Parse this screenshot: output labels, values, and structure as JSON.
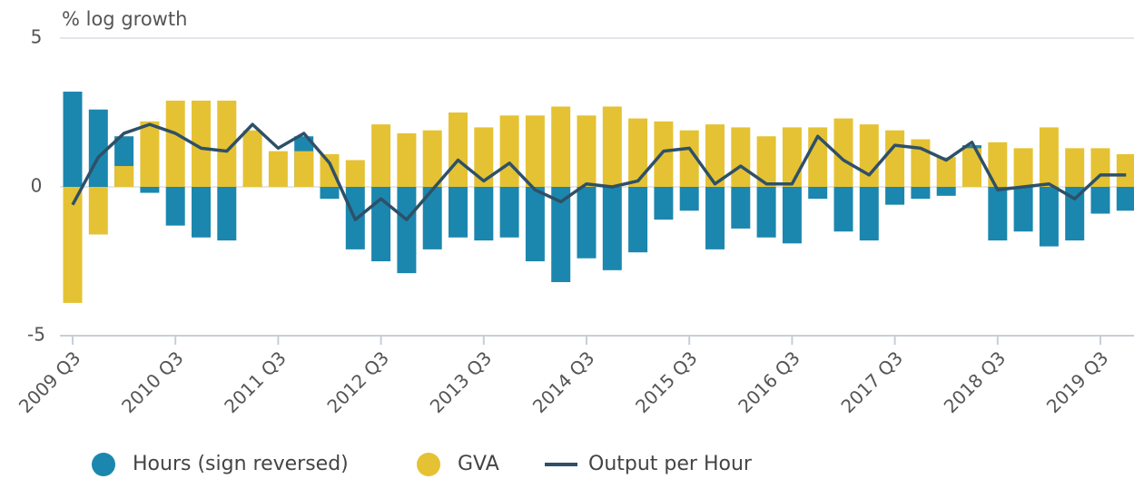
{
  "chart_data": {
    "type": "bar",
    "y_label": "% log growth",
    "categories": [
      "2009 Q3",
      null,
      null,
      null,
      "2010 Q3",
      null,
      null,
      null,
      "2011 Q3",
      null,
      null,
      null,
      "2012 Q3",
      null,
      null,
      null,
      "2013 Q3",
      null,
      null,
      null,
      "2014 Q3",
      null,
      null,
      null,
      "2015 Q3",
      null,
      null,
      null,
      "2016 Q3",
      null,
      null,
      null,
      "2017 Q3",
      null,
      null,
      null,
      "2018 Q3",
      null,
      null,
      null,
      "2019 Q3",
      null
    ],
    "series": [
      {
        "name": "Hours (sign reversed)",
        "type": "bar",
        "color": "#1b87ae",
        "values": [
          3.2,
          2.6,
          1.7,
          -0.2,
          -1.3,
          -1.7,
          -1.8,
          0.1,
          0,
          1.7,
          -0.4,
          -2.1,
          -2.5,
          -2.9,
          -2.1,
          -1.7,
          -1.8,
          -1.7,
          -2.5,
          -3.2,
          -2.4,
          -2.8,
          -2.2,
          -1.1,
          -0.8,
          -2.1,
          -1.4,
          -1.7,
          -1.9,
          -0.4,
          -1.5,
          -1.8,
          -0.6,
          -0.4,
          -0.3,
          1.4,
          -1.8,
          -1.5,
          -2.0,
          -1.8,
          -0.9,
          -0.8
        ]
      },
      {
        "name": "GVA",
        "type": "bar",
        "color": "#e5c233",
        "values": [
          -3.9,
          -1.6,
          0.7,
          2.2,
          2.9,
          2.9,
          2.9,
          1.9,
          1.2,
          1.2,
          1.1,
          0.9,
          2.1,
          1.8,
          1.9,
          2.5,
          2.0,
          2.4,
          2.4,
          2.7,
          2.4,
          2.7,
          2.3,
          2.2,
          1.9,
          2.1,
          2.0,
          1.7,
          2.0,
          2.0,
          2.3,
          2.1,
          1.9,
          1.6,
          1.0,
          1.3,
          1.5,
          1.3,
          2.0,
          1.3,
          1.3,
          1.1
        ]
      },
      {
        "name": "Output per Hour",
        "type": "line",
        "color": "#2e5068",
        "values": [
          -0.6,
          1.0,
          1.8,
          2.1,
          1.8,
          1.3,
          1.2,
          2.1,
          1.3,
          1.8,
          0.8,
          -1.1,
          -0.4,
          -1.1,
          -0.1,
          0.9,
          0.2,
          0.8,
          -0.1,
          -0.5,
          0.1,
          0.0,
          0.2,
          1.2,
          1.3,
          0.1,
          0.7,
          0.1,
          0.1,
          1.7,
          0.9,
          0.4,
          1.4,
          1.3,
          0.9,
          1.5,
          -0.1,
          0.0,
          0.1,
          -0.4,
          0.4,
          0.4
        ]
      }
    ],
    "ylim": [
      -5,
      5
    ],
    "yticks": [
      -5,
      0,
      5
    ],
    "grid": true
  }
}
